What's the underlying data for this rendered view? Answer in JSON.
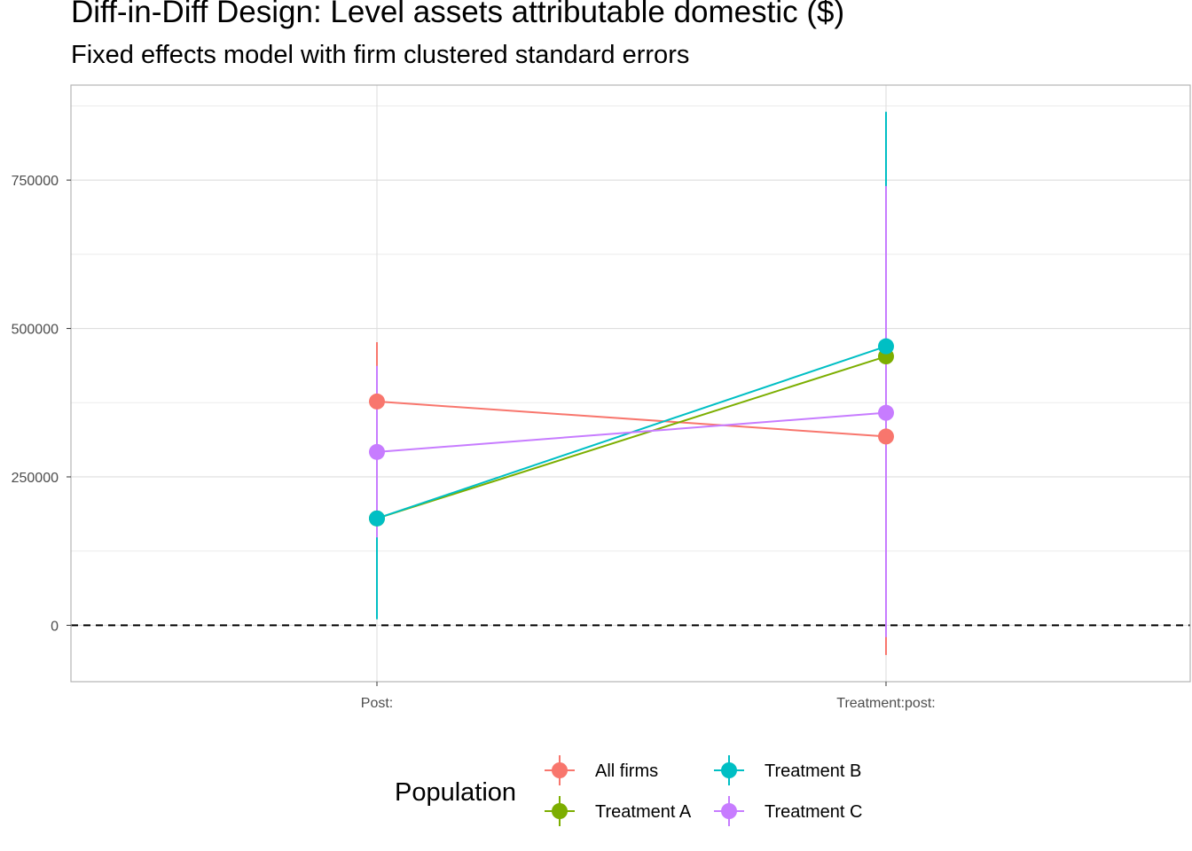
{
  "chart_data": {
    "type": "scatter",
    "title": "Diff-in-Diff Design: Level assets attributable domestic  ($)",
    "subtitle": "Fixed effects model with firm clustered standard errors",
    "xlabel": "",
    "ylabel": "",
    "categories": [
      "Post:",
      "Treatment:post:"
    ],
    "y_ticks": [
      0,
      250000,
      500000,
      750000
    ],
    "ylim": [
      -95000,
      910000
    ],
    "grid": true,
    "reference_line": {
      "y": 0,
      "style": "dashed"
    },
    "legend": {
      "title": "Population",
      "position": "bottom"
    },
    "series": [
      {
        "name": "All firms",
        "color": "#F8766D",
        "values": [
          377000,
          318000
        ],
        "lower": [
          280000,
          -50000
        ],
        "upper": [
          477000,
          685000
        ]
      },
      {
        "name": "Treatment A",
        "color": "#7CAE00",
        "values": [
          180000,
          453000
        ],
        "lower": [
          148000,
          285000
        ],
        "upper": [
          212000,
          620000
        ]
      },
      {
        "name": "Treatment B",
        "color": "#00BFC4",
        "values": [
          180000,
          470000
        ],
        "lower": [
          10000,
          75000
        ],
        "upper": [
          350000,
          865000
        ]
      },
      {
        "name": "Treatment C",
        "color": "#C77CFF",
        "values": [
          292000,
          358000
        ],
        "lower": [
          148000,
          -20000
        ],
        "upper": [
          437000,
          740000
        ]
      }
    ]
  }
}
